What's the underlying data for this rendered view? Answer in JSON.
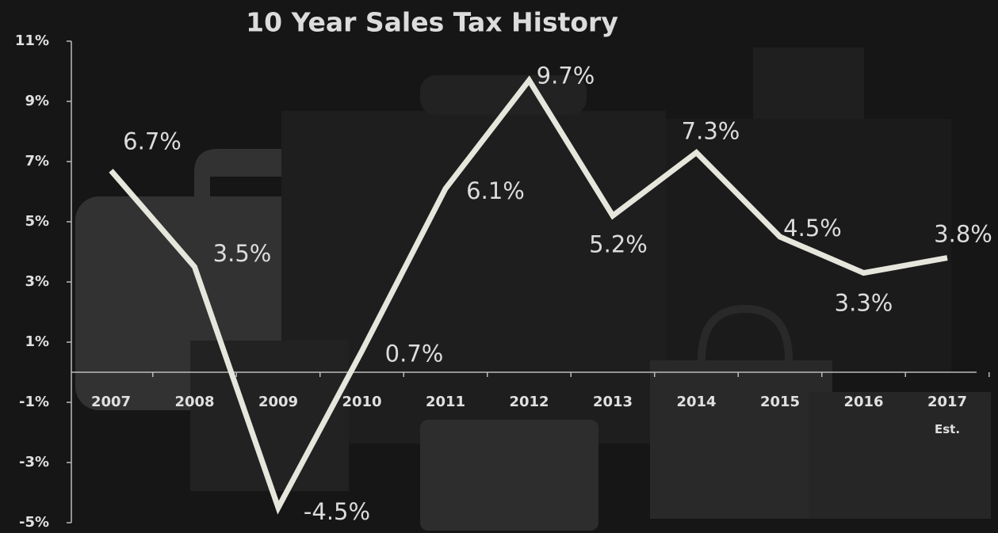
{
  "chart_data": {
    "type": "line",
    "title": "10 Year Sales Tax History",
    "categories": [
      "2007",
      "2008",
      "2009",
      "2010",
      "2011",
      "2012",
      "2013",
      "2014",
      "2015",
      "2016",
      "2017 Est."
    ],
    "values": [
      6.7,
      3.5,
      -4.5,
      0.7,
      6.1,
      9.7,
      5.2,
      7.3,
      4.5,
      3.3,
      3.8
    ],
    "value_labels": [
      "6.7%",
      "3.5%",
      "-4.5%",
      "0.7%",
      "6.1%",
      "9.7%",
      "5.2%",
      "7.3%",
      "4.5%",
      "3.3%",
      "3.8%"
    ],
    "color": "#e6e6dc",
    "ylim": [
      -5,
      11
    ],
    "yticks": [
      {
        "value": 11,
        "label": "11%"
      },
      {
        "value": 9,
        "label": "9%"
      },
      {
        "value": 7,
        "label": "7%"
      },
      {
        "value": 5,
        "label": "5%"
      },
      {
        "value": 3,
        "label": "3%"
      },
      {
        "value": 1,
        "label": "1%"
      },
      {
        "value": -1,
        "label": "-1%"
      },
      {
        "value": -3,
        "label": "-3%"
      },
      {
        "value": -5,
        "label": "-5%"
      }
    ]
  }
}
